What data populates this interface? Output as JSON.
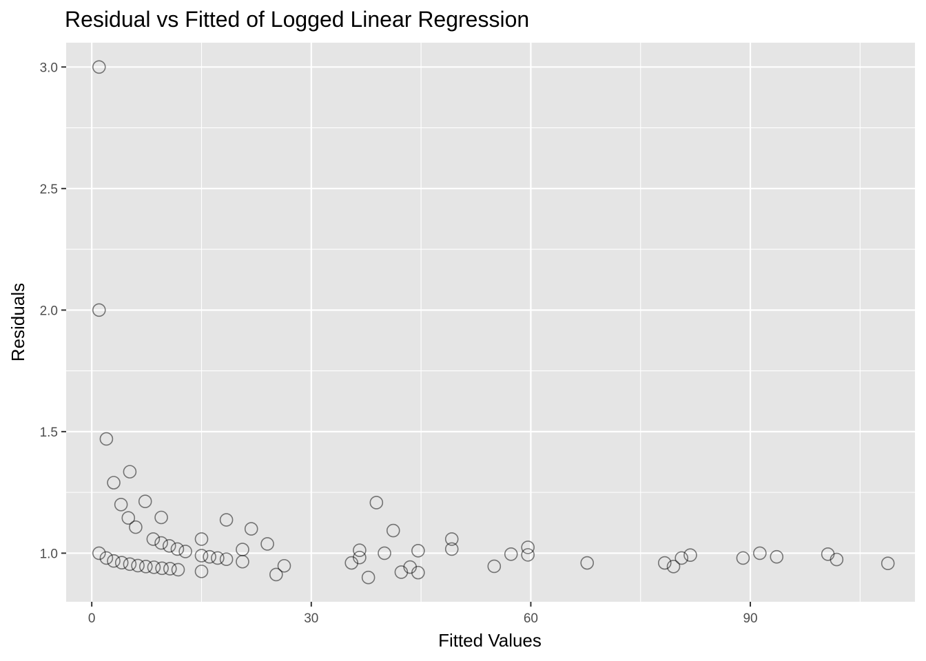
{
  "chart_data": {
    "type": "scatter",
    "title": "Residual vs Fitted of Logged Linear Regression",
    "xlabel": "Fitted Values",
    "ylabel": "Residuals",
    "xlim": [
      -3.5,
      112.5
    ],
    "ylim": [
      0.8,
      3.1
    ],
    "x_ticks": [
      0,
      30,
      60,
      90
    ],
    "x_tick_labels": [
      "0",
      "30",
      "60",
      "90"
    ],
    "x_minor_ticks": [
      15,
      45,
      75,
      105
    ],
    "y_ticks": [
      1.0,
      1.5,
      2.0,
      2.5,
      3.0
    ],
    "y_tick_labels": [
      "1.0",
      "1.5",
      "2.0",
      "2.5",
      "3.0"
    ],
    "y_minor_ticks": [
      1.25,
      1.75,
      2.25,
      2.75
    ],
    "grid": true,
    "colors": {
      "panel": "#e5e5e5",
      "grid": "#ffffff",
      "point_stroke": "#000000",
      "tick_text": "#4d4d4d"
    },
    "points": [
      {
        "x": 1.0,
        "y": 3.0
      },
      {
        "x": 1.0,
        "y": 2.0
      },
      {
        "x": 2.0,
        "y": 1.47
      },
      {
        "x": 3.0,
        "y": 1.29
      },
      {
        "x": 4.0,
        "y": 1.2
      },
      {
        "x": 5.0,
        "y": 1.145
      },
      {
        "x": 6.0,
        "y": 1.107
      },
      {
        "x": 5.2,
        "y": 1.335
      },
      {
        "x": 7.3,
        "y": 1.213
      },
      {
        "x": 9.5,
        "y": 1.147
      },
      {
        "x": 8.4,
        "y": 1.058
      },
      {
        "x": 9.5,
        "y": 1.042
      },
      {
        "x": 10.6,
        "y": 1.03
      },
      {
        "x": 11.7,
        "y": 1.017
      },
      {
        "x": 12.8,
        "y": 1.007
      },
      {
        "x": 1.0,
        "y": 1.0
      },
      {
        "x": 2.0,
        "y": 0.98
      },
      {
        "x": 3.0,
        "y": 0.968
      },
      {
        "x": 4.1,
        "y": 0.961
      },
      {
        "x": 5.2,
        "y": 0.955
      },
      {
        "x": 6.3,
        "y": 0.949
      },
      {
        "x": 7.4,
        "y": 0.945
      },
      {
        "x": 8.5,
        "y": 0.942
      },
      {
        "x": 9.6,
        "y": 0.938
      },
      {
        "x": 10.7,
        "y": 0.936
      },
      {
        "x": 11.8,
        "y": 0.932
      },
      {
        "x": 15.0,
        "y": 1.058
      },
      {
        "x": 15.0,
        "y": 0.99
      },
      {
        "x": 15.0,
        "y": 0.925
      },
      {
        "x": 16.1,
        "y": 0.985
      },
      {
        "x": 17.2,
        "y": 0.98
      },
      {
        "x": 18.4,
        "y": 0.975
      },
      {
        "x": 18.4,
        "y": 1.137
      },
      {
        "x": 20.6,
        "y": 1.015
      },
      {
        "x": 20.6,
        "y": 0.965
      },
      {
        "x": 21.8,
        "y": 1.1
      },
      {
        "x": 24.0,
        "y": 1.038
      },
      {
        "x": 25.2,
        "y": 0.912
      },
      {
        "x": 26.3,
        "y": 0.948
      },
      {
        "x": 35.5,
        "y": 0.96
      },
      {
        "x": 36.6,
        "y": 1.012
      },
      {
        "x": 36.6,
        "y": 0.982
      },
      {
        "x": 37.8,
        "y": 0.9
      },
      {
        "x": 38.9,
        "y": 1.208
      },
      {
        "x": 40.0,
        "y": 1.0
      },
      {
        "x": 41.2,
        "y": 1.093
      },
      {
        "x": 42.3,
        "y": 0.922
      },
      {
        "x": 43.5,
        "y": 0.943
      },
      {
        "x": 44.6,
        "y": 1.01
      },
      {
        "x": 44.6,
        "y": 0.92
      },
      {
        "x": 49.2,
        "y": 1.058
      },
      {
        "x": 49.2,
        "y": 1.017
      },
      {
        "x": 55.0,
        "y": 0.946
      },
      {
        "x": 57.3,
        "y": 0.996
      },
      {
        "x": 59.6,
        "y": 1.024
      },
      {
        "x": 59.6,
        "y": 0.993
      },
      {
        "x": 67.7,
        "y": 0.96
      },
      {
        "x": 78.3,
        "y": 0.96
      },
      {
        "x": 79.5,
        "y": 0.945
      },
      {
        "x": 80.6,
        "y": 0.98
      },
      {
        "x": 81.8,
        "y": 0.992
      },
      {
        "x": 89.0,
        "y": 0.98
      },
      {
        "x": 91.3,
        "y": 1.0
      },
      {
        "x": 93.6,
        "y": 0.985
      },
      {
        "x": 100.6,
        "y": 0.996
      },
      {
        "x": 101.8,
        "y": 0.974
      },
      {
        "x": 108.8,
        "y": 0.958
      }
    ]
  }
}
